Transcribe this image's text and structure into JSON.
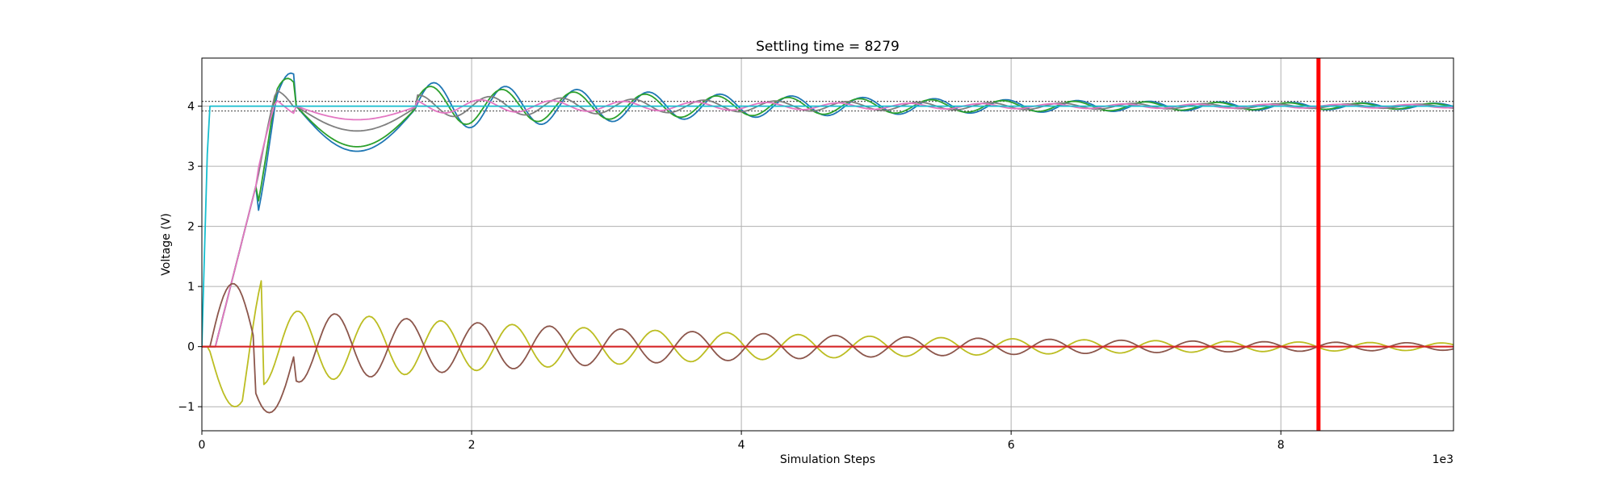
{
  "chart_data": {
    "type": "line",
    "title": "Settling time = 8279",
    "xlabel": "Simulation Steps",
    "ylabel": "Voltage (V)",
    "x_offset_label": "1e3",
    "xlim": [
      0,
      9280
    ],
    "ylim": [
      -1.4,
      4.8
    ],
    "x_ticks": [
      0,
      2000,
      4000,
      6000,
      8000
    ],
    "x_tick_labels": [
      "0",
      "2",
      "4",
      "6",
      "8"
    ],
    "y_ticks": [
      -1,
      0,
      1,
      2,
      3,
      4
    ],
    "y_tick_labels": [
      "−1",
      "0",
      "1",
      "2",
      "3",
      "4"
    ],
    "grid": true,
    "legend": "none",
    "settling_time": 8279,
    "settling_marker_color": "#ff0000",
    "band": {
      "upper": 4.08,
      "lower": 3.92,
      "target": 4.0,
      "color": "#555555"
    },
    "series_styles": [
      {
        "color": "#1f77b4",
        "final": 4.0,
        "start_amp": 0.58,
        "decay": 0.00034,
        "period": 530,
        "phase": 0.0
      },
      {
        "color": "#2ca02c",
        "final": 4.0,
        "start_amp": 0.48,
        "decay": 0.00034,
        "period": 530,
        "phase": 0.3
      },
      {
        "color": "#7f7f7f",
        "final": 4.0,
        "start_amp": 0.25,
        "decay": 0.00034,
        "period": 530,
        "phase": 1.4
      },
      {
        "color": "#e377c2",
        "final": 4.0,
        "start_amp": 0.15,
        "decay": 0.00034,
        "period": 530,
        "phase": 2.2
      },
      {
        "color": "#17becf",
        "final": 4.0,
        "start_amp": 0.0,
        "decay": 0.0,
        "period": 530,
        "phase": 0.0
      },
      {
        "color": "#bcbd22",
        "final": 0.0,
        "start_amp": 0.7,
        "decay": 0.00031,
        "period": 530,
        "phase": 3.14
      },
      {
        "color": "#8c564b",
        "final": 0.0,
        "start_amp": 0.7,
        "decay": 0.00031,
        "period": 530,
        "phase": 0.0
      },
      {
        "color": "#d62728",
        "final": 0.0,
        "start_amp": 0.0,
        "decay": 0.0,
        "period": 530,
        "phase": 0.0
      }
    ]
  }
}
